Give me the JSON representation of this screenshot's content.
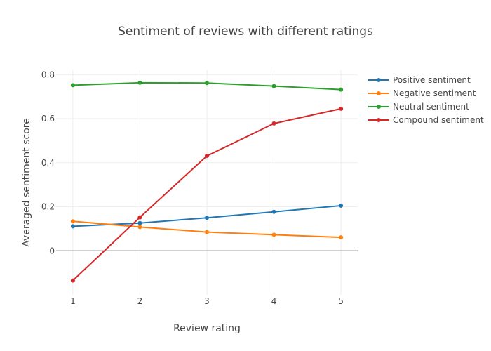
{
  "chart_data": {
    "type": "line",
    "title": "Sentiment of reviews with different ratings",
    "xlabel": "Review rating",
    "ylabel": "Averaged sentiment score",
    "x": [
      1,
      2,
      3,
      4,
      5
    ],
    "xlim": [
      0.75,
      5.25
    ],
    "ylim": [
      -0.2,
      0.82
    ],
    "xticks": [
      1,
      2,
      3,
      4,
      5
    ],
    "yticks": [
      0,
      0.2,
      0.4,
      0.6,
      0.8
    ],
    "ytick_labels": [
      "0",
      "0.2",
      "0.4",
      "0.6",
      "0.8"
    ],
    "grid": true,
    "legend_position": "top-right",
    "series": [
      {
        "name": "Positive sentiment",
        "color": "#1f77b4",
        "values": [
          0.111,
          0.126,
          0.15,
          0.177,
          0.205
        ]
      },
      {
        "name": "Negative sentiment",
        "color": "#ff7f0e",
        "values": [
          0.134,
          0.108,
          0.085,
          0.073,
          0.061
        ]
      },
      {
        "name": "Neutral sentiment",
        "color": "#2ca02c",
        "values": [
          0.752,
          0.763,
          0.762,
          0.748,
          0.732
        ]
      },
      {
        "name": "Compound sentiment",
        "color": "#d62728",
        "values": [
          -0.135,
          0.152,
          0.431,
          0.578,
          0.645
        ]
      }
    ]
  }
}
